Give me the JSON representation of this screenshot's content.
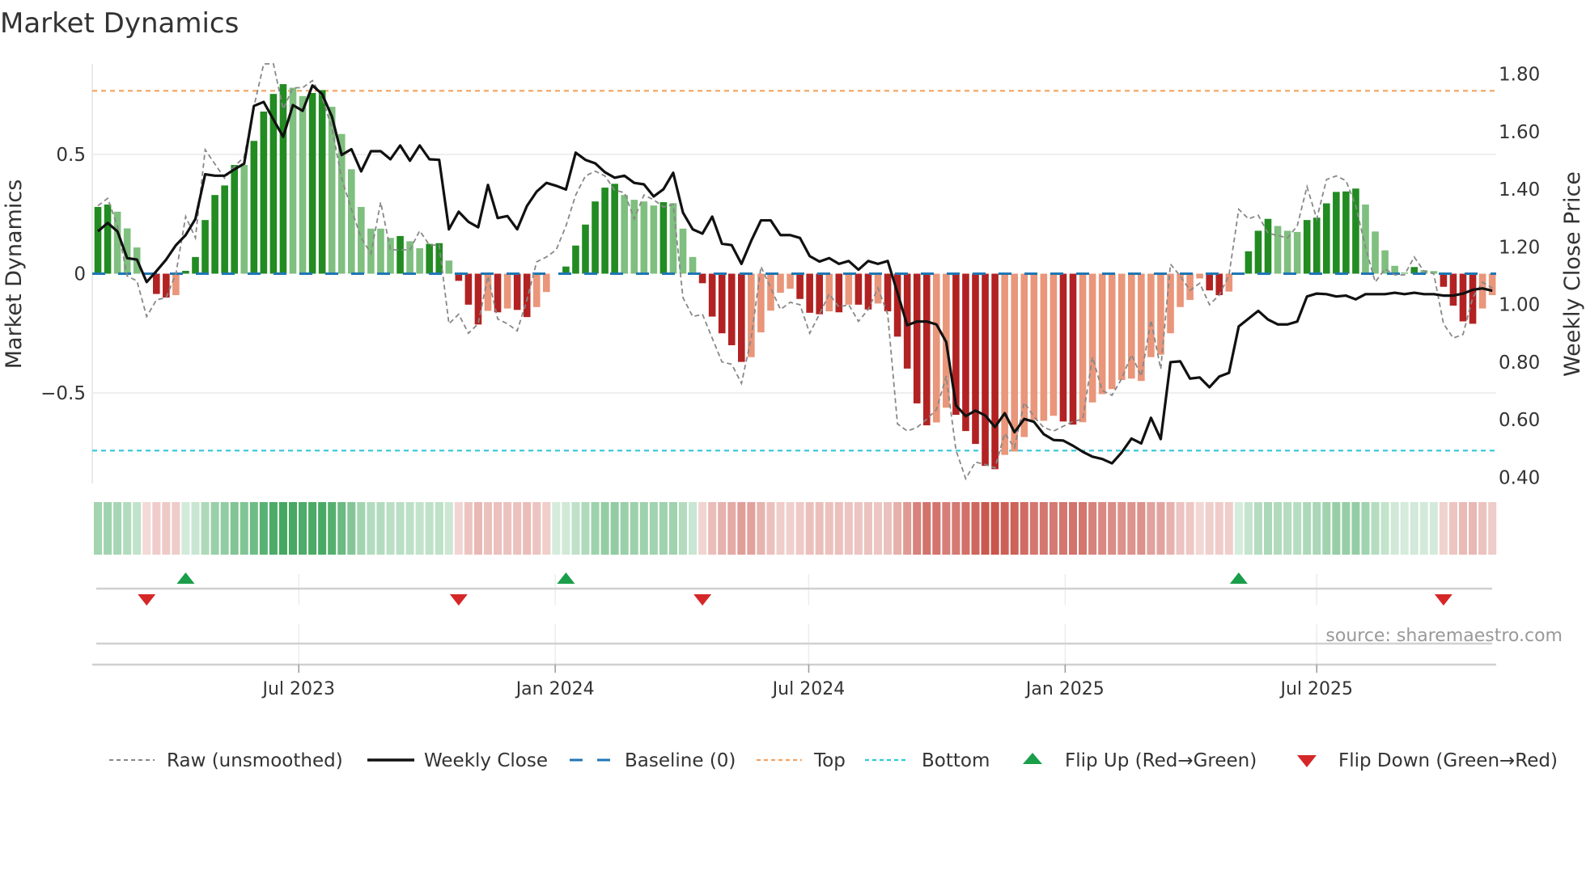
{
  "title": "Market Dynamics",
  "source": "source: sharemaestro.com",
  "chart_data": {
    "type": "bar",
    "title": "Market Dynamics",
    "ylabel": "Market Dynamics",
    "y2label": "Weekly Close Price",
    "xlabel": "",
    "ylim": [
      -0.88,
      0.88
    ],
    "y2lim": [
      0.379,
      1.835
    ],
    "grid": true,
    "yticks": [
      {
        "v": 0.5,
        "label": "0.5"
      },
      {
        "v": 0,
        "label": "0"
      },
      {
        "v": -0.5,
        "label": "−0.5"
      }
    ],
    "y2ticks": [
      {
        "v": 1.8,
        "label": "1.80"
      },
      {
        "v": 1.6,
        "label": "1.60"
      },
      {
        "v": 1.4,
        "label": "1.40"
      },
      {
        "v": 1.2,
        "label": "1.20"
      },
      {
        "v": 1.0,
        "label": "1.00"
      },
      {
        "v": 0.8,
        "label": "0.80"
      },
      {
        "v": 0.6,
        "label": "0.60"
      },
      {
        "v": 0.4,
        "label": "0.40"
      }
    ],
    "xticks_week_index": [
      {
        "pos": 20.6,
        "label": "Jul 2023"
      },
      {
        "pos": 46.9,
        "label": "Jan 2024"
      },
      {
        "pos": 72.9,
        "label": "Jul 2024"
      },
      {
        "pos": 99.2,
        "label": "Jan 2025"
      },
      {
        "pos": 125.0,
        "label": "Jul 2025"
      }
    ],
    "top_level": 0.767,
    "bottom_level": -0.742,
    "baseline": 0,
    "dynamics": [
      0.28,
      0.29,
      0.26,
      0.19,
      0.11,
      -0.005,
      -0.085,
      -0.1,
      -0.09,
      0.012,
      0.07,
      0.225,
      0.33,
      0.37,
      0.456,
      0.456,
      0.557,
      0.68,
      0.754,
      0.795,
      0.78,
      0.745,
      0.758,
      0.77,
      0.7,
      0.586,
      0.438,
      0.28,
      0.189,
      0.189,
      0.15,
      0.158,
      0.136,
      0.107,
      0.125,
      0.128,
      0.055,
      -0.03,
      -0.13,
      -0.213,
      -0.156,
      -0.162,
      -0.146,
      -0.152,
      -0.182,
      -0.14,
      -0.077,
      0,
      0.03,
      0.118,
      0.206,
      0.303,
      0.361,
      0.377,
      0.33,
      0.31,
      0.303,
      0.286,
      0.3,
      0.296,
      0.189,
      0.07,
      -0.04,
      -0.18,
      -0.25,
      -0.3,
      -0.37,
      -0.35,
      -0.246,
      -0.155,
      -0.08,
      -0.063,
      -0.106,
      -0.164,
      -0.17,
      -0.158,
      -0.162,
      -0.13,
      -0.13,
      -0.15,
      -0.125,
      -0.158,
      -0.264,
      -0.398,
      -0.544,
      -0.636,
      -0.624,
      -0.562,
      -0.592,
      -0.66,
      -0.714,
      -0.806,
      -0.82,
      -0.76,
      -0.746,
      -0.685,
      -0.614,
      -0.617,
      -0.596,
      -0.62,
      -0.633,
      -0.623,
      -0.54,
      -0.505,
      -0.484,
      -0.446,
      -0.44,
      -0.45,
      -0.35,
      -0.34,
      -0.25,
      -0.14,
      -0.11,
      -0.02,
      -0.07,
      -0.09,
      -0.075,
      0,
      0.094,
      0.18,
      0.23,
      0.2,
      0.18,
      0.175,
      0.225,
      0.235,
      0.295,
      0.343,
      0.345,
      0.357,
      0.29,
      0.177,
      0.098,
      0.033,
      0.005,
      0.028,
      0.015,
      0.011,
      -0.055,
      -0.134,
      -0.2,
      -0.21,
      -0.146,
      -0.09
    ],
    "strong": [
      1,
      1,
      0,
      0,
      0,
      1,
      1,
      1,
      0,
      1,
      1,
      1,
      1,
      1,
      1,
      0,
      1,
      1,
      1,
      1,
      0,
      0,
      1,
      1,
      0,
      0,
      0,
      0,
      0,
      0,
      0,
      1,
      0,
      0,
      1,
      1,
      0,
      1,
      1,
      1,
      0,
      1,
      0,
      1,
      1,
      0,
      0,
      0,
      1,
      1,
      1,
      1,
      1,
      1,
      0,
      0,
      0,
      0,
      1,
      0,
      0,
      0,
      1,
      1,
      1,
      1,
      1,
      0,
      0,
      0,
      0,
      0,
      1,
      1,
      1,
      0,
      1,
      0,
      1,
      1,
      0,
      1,
      1,
      1,
      1,
      1,
      0,
      0,
      1,
      1,
      1,
      1,
      1,
      0,
      0,
      0,
      0,
      0,
      0,
      1,
      1,
      0,
      0,
      0,
      0,
      0,
      0,
      0,
      0,
      0,
      0,
      0,
      0,
      0,
      1,
      1,
      0,
      0,
      1,
      1,
      1,
      0,
      0,
      0,
      1,
      1,
      1,
      1,
      1,
      1,
      0,
      0,
      0,
      0,
      0,
      1,
      0,
      0,
      1,
      1,
      1,
      1,
      0,
      0
    ],
    "raw": [
      0.285,
      0.316,
      0.2,
      -0.01,
      -0.03,
      -0.18,
      -0.11,
      -0.1,
      0.0,
      0.24,
      0.15,
      0.52,
      0.46,
      0.4,
      0.45,
      0.49,
      0.7,
      0.88,
      0.88,
      0.69,
      0.78,
      0.78,
      0.81,
      0.74,
      0.61,
      0.4,
      0.27,
      0.15,
      0.085,
      0.3,
      0.1,
      0.1,
      0.1,
      0.18,
      0.12,
      0.12,
      -0.21,
      -0.17,
      -0.25,
      -0.21,
      -0.01,
      -0.19,
      -0.21,
      -0.24,
      -0.11,
      0.05,
      0.07,
      0.1,
      0.2,
      0.33,
      0.41,
      0.43,
      0.41,
      0.35,
      0.34,
      0.23,
      0.33,
      0.31,
      0.28,
      0.29,
      -0.1,
      -0.18,
      -0.17,
      -0.27,
      -0.37,
      -0.38,
      -0.46,
      -0.27,
      0.03,
      -0.06,
      -0.15,
      -0.12,
      -0.13,
      -0.25,
      -0.17,
      -0.085,
      -0.14,
      -0.13,
      -0.2,
      -0.15,
      -0.06,
      -0.17,
      -0.63,
      -0.66,
      -0.645,
      -0.61,
      -0.57,
      -0.43,
      -0.74,
      -0.86,
      -0.79,
      -0.8,
      -0.815,
      -0.67,
      -0.73,
      -0.54,
      -0.6,
      -0.645,
      -0.66,
      -0.64,
      -0.62,
      -0.61,
      -0.35,
      -0.49,
      -0.51,
      -0.44,
      -0.34,
      -0.43,
      -0.195,
      -0.4,
      0.04,
      -0.01,
      -0.07,
      -0.04,
      -0.13,
      -0.09,
      -0.006,
      0.27,
      0.23,
      0.245,
      0.17,
      0.16,
      0.15,
      0.2,
      0.365,
      0.23,
      0.395,
      0.41,
      0.39,
      0.285,
      0.11,
      -0.035,
      0.02,
      -0.005,
      -0.005,
      0.07,
      0.01,
      0.0,
      -0.21,
      -0.27,
      -0.255,
      -0.1,
      -0.036,
      -0.06
    ],
    "weekly_close": [
      1.254,
      1.283,
      1.254,
      1.161,
      1.156,
      1.078,
      1.116,
      1.156,
      1.206,
      1.241,
      1.297,
      1.452,
      1.447,
      1.447,
      1.469,
      1.489,
      1.689,
      1.703,
      1.642,
      1.582,
      1.692,
      1.672,
      1.76,
      1.73,
      1.652,
      1.519,
      1.539,
      1.462,
      1.532,
      1.532,
      1.504,
      1.552,
      1.499,
      1.552,
      1.504,
      1.502,
      1.261,
      1.322,
      1.287,
      1.268,
      1.415,
      1.3,
      1.307,
      1.261,
      1.342,
      1.392,
      1.422,
      1.412,
      1.399,
      1.527,
      1.502,
      1.49,
      1.459,
      1.44,
      1.447,
      1.422,
      1.417,
      1.375,
      1.4,
      1.457,
      1.319,
      1.261,
      1.246,
      1.305,
      1.211,
      1.206,
      1.141,
      1.221,
      1.292,
      1.292,
      1.241,
      1.241,
      1.231,
      1.168,
      1.149,
      1.161,
      1.141,
      1.151,
      1.121,
      1.151,
      1.141,
      1.151,
      1.041,
      0.928,
      0.941,
      0.941,
      0.931,
      0.87,
      0.65,
      0.613,
      0.632,
      0.615,
      0.575,
      0.623,
      0.557,
      0.603,
      0.593,
      0.55,
      0.53,
      0.528,
      0.51,
      0.489,
      0.472,
      0.464,
      0.449,
      0.487,
      0.535,
      0.518,
      0.607,
      0.533,
      0.8,
      0.803,
      0.743,
      0.747,
      0.713,
      0.75,
      0.763,
      0.924,
      0.951,
      0.978,
      0.948,
      0.931,
      0.931,
      0.941,
      1.028,
      1.038,
      1.036,
      1.028,
      1.031,
      1.018,
      1.036,
      1.036,
      1.036,
      1.041,
      1.036,
      1.041,
      1.036,
      1.036,
      1.031,
      1.031,
      1.038,
      1.051,
      1.056,
      1.048
    ],
    "flips_up": [
      9,
      48,
      117
    ],
    "flips_down": [
      5,
      37,
      62,
      138
    ],
    "legend": {
      "position": "bottom",
      "items": [
        {
          "key": "raw",
          "label": "Raw (unsmoothed)"
        },
        {
          "key": "close",
          "label": "Weekly Close"
        },
        {
          "key": "baseline",
          "label": "Baseline (0)"
        },
        {
          "key": "top",
          "label": "Top"
        },
        {
          "key": "bottom",
          "label": "Bottom"
        },
        {
          "key": "flip-up",
          "label": "Flip Up (Red→Green)"
        },
        {
          "key": "flip-down",
          "label": "Flip Down (Green→Red)"
        }
      ]
    },
    "colors": {
      "strong_green": "#228b22",
      "weak_green": "#7fbf7f",
      "strong_red": "#b22222",
      "weak_red": "#e9967a",
      "heat_green": "#2f9e4f",
      "heat_red": "#c4473d",
      "raw": "#888888",
      "close": "#111111",
      "baseline": "#1f77b4",
      "top": "#f4a460",
      "bottom": "#30c8d8",
      "flip_up": "#1a9e4a",
      "flip_down": "#d62728"
    }
  }
}
